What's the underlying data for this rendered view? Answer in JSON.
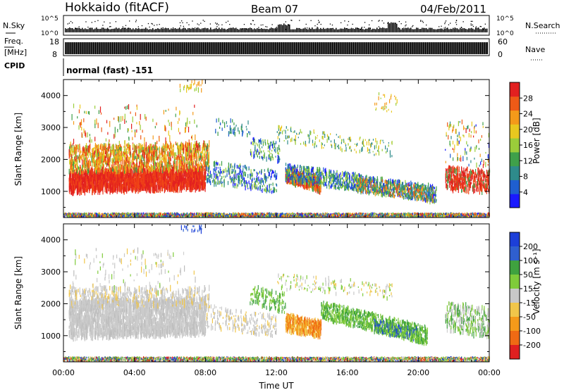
{
  "header": {
    "station": "Hokkaido (fitACF)",
    "beam": "Beam 07",
    "date": "04/Feb/2011"
  },
  "side_labels": {
    "nsky": "N.Sky",
    "freq": "Freq.",
    "mhz": "[MHz]",
    "cpid": "CPID",
    "nsearch": "N.Search",
    "nave": "Nave",
    "nsky_ticks": [
      "10^5",
      "10^0"
    ],
    "nsearch_ticks": [
      "10^5",
      "10^0"
    ],
    "freq_ticks": [
      "18",
      "8"
    ],
    "nave_ticks": [
      "60",
      "0"
    ]
  },
  "cpid_text": "normal (fast) -151",
  "chart_data": [
    {
      "type": "heatmap",
      "name": "power",
      "ylabel": "Slant Range [km]",
      "yticks": [
        1000,
        2000,
        3000,
        4000
      ],
      "ylim": [
        180,
        4500
      ],
      "colorbar": {
        "label": "Power [dB]",
        "ticks": [
          "4",
          "8",
          "12",
          "16",
          "20",
          "24",
          "28"
        ],
        "colors": [
          "#1a1aff",
          "#1f5fd0",
          "#2e8b8b",
          "#3fa04a",
          "#9bcd3a",
          "#e9c81f",
          "#f49a1a",
          "#ee5a17",
          "#e22020"
        ]
      }
    },
    {
      "type": "heatmap",
      "name": "velocity",
      "ylabel": "Slant Range [km]",
      "xlabel": "Time UT",
      "yticks": [
        1000,
        2000,
        3000,
        4000
      ],
      "ylim": [
        180,
        4500
      ],
      "xlim": [
        0,
        24
      ],
      "xticks": [
        "00:00",
        "04:00",
        "08:00",
        "12:00",
        "16:00",
        "20:00",
        "00:00"
      ],
      "colorbar": {
        "label": "Velocity [m s⁻¹]",
        "ticks": [
          "200",
          "100",
          "50",
          "15",
          "-15",
          "-50",
          "-100",
          "-200"
        ],
        "colors": [
          "#1c3fd8",
          "#2f5fcf",
          "#3fa23f",
          "#7fcb3a",
          "#c8c8c8",
          "#f1c64a",
          "#f59a1a",
          "#ef6a14",
          "#e02020"
        ]
      }
    }
  ]
}
